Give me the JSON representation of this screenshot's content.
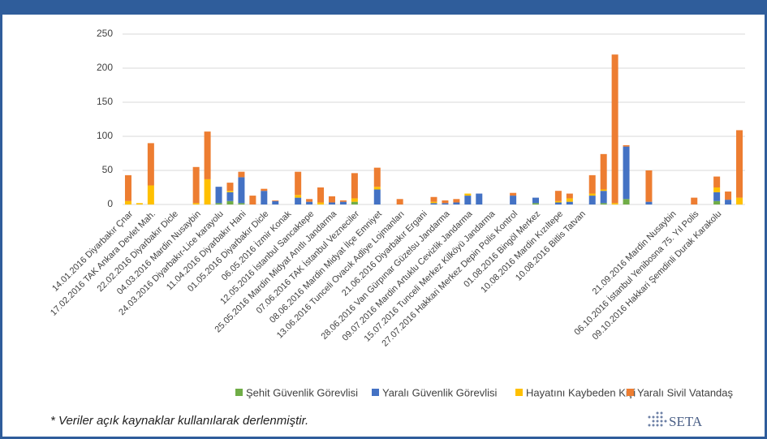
{
  "chart_data": {
    "type": "stacked_bar",
    "categories": [
      "14.01.2016 Diyarbakır Çnar",
      null,
      "17.02.2016 TAK Ankara Devlet Mah.",
      null,
      "22.02.2016 Diyarbakır Dicle",
      null,
      "04.03.2016 Mardin Nusaybin",
      null,
      "24.03.2016 Diyarbakır-Lice karayolu",
      null,
      "11.04.2016 Diyarbakır Hani",
      null,
      "01.05.2016 Diyarbakır Dicle",
      null,
      "06.05.2016 İzmir Konak",
      null,
      "12.05.2016 İstanbul Sancaktepe",
      null,
      "25.05.2016 Mardin Midyat Anıtlı Jandarma",
      null,
      "07.06.2016 TAK İstanbul Vezneciler",
      null,
      "08.06.2016 Mardin Midyat İlçe Emniyet",
      null,
      "13.06.2016 Tunceli Ovacık Adliye Lojmanları",
      null,
      "21.06.2016 Diyarbakır Ergani",
      null,
      "28.06.2016 Van Gürpınar Güzelsu Jandarma",
      null,
      "09.07.2016 Mardin Artuklu Cevizlik Jandarma",
      null,
      "15.07.2016 Tunceli Merkez Kilköyü Jandarma",
      null,
      "27.07.2016 Hakkari Merkez Depin Polis Kontrol",
      null,
      "01.08.2016 Bingöl Merkez",
      null,
      "10.08.2016 Mardin Kızıltepe",
      null,
      "10.08.2016 Bitlis Tatvan",
      null,
      null,
      null,
      null,
      null,
      null,
      null,
      "21.09.2016 Mardin Nusaybin",
      null,
      "06.10.2016 İstanbul Yenibosna 75. Yıl Polis",
      null,
      "09.10.2016 Hakkari Şemdinli Durak Karakolu",
      null,
      null
    ],
    "series": [
      {
        "name": "Şehit Güvenlik Görevlisi",
        "color": "#70ad47",
        "values": [
          0,
          0,
          0,
          0,
          0,
          0,
          0,
          0,
          2,
          5,
          2,
          0,
          0,
          0,
          0,
          0,
          0,
          0,
          0,
          0,
          4,
          0,
          0,
          0,
          0,
          0,
          0,
          0,
          0,
          0,
          0,
          0,
          0,
          0,
          0,
          0,
          2,
          0,
          0,
          0,
          0,
          0,
          2,
          0,
          8,
          0,
          0,
          0,
          0,
          0,
          0,
          0,
          5,
          0,
          0
        ]
      },
      {
        "name": "Yaralı Güvenlik Görevlisi",
        "color": "#4472c4",
        "values": [
          0,
          0,
          0,
          0,
          0,
          0,
          0,
          0,
          24,
          13,
          38,
          0,
          20,
          5,
          0,
          10,
          4,
          0,
          3,
          4,
          0,
          0,
          22,
          0,
          0,
          0,
          0,
          2,
          2,
          3,
          13,
          16,
          0,
          0,
          13,
          0,
          8,
          0,
          3,
          4,
          0,
          13,
          18,
          0,
          77,
          0,
          4,
          0,
          0,
          0,
          0,
          0,
          13,
          7,
          0
        ]
      },
      {
        "name": "Hayatını Kaybeden Kişi",
        "color": "#ffc000",
        "values": [
          5,
          2,
          28,
          0,
          0,
          0,
          2,
          37,
          0,
          2,
          0,
          0,
          0,
          0,
          0,
          4,
          0,
          3,
          0,
          0,
          5,
          0,
          4,
          0,
          0,
          0,
          0,
          2,
          0,
          0,
          3,
          0,
          0,
          0,
          0,
          0,
          0,
          0,
          2,
          5,
          0,
          3,
          2,
          2,
          0,
          0,
          0,
          0,
          0,
          0,
          0,
          0,
          7,
          0,
          10
        ]
      },
      {
        "name": "Yaralı Sivil Vatandaş",
        "color": "#ed7d31",
        "values": [
          38,
          0,
          62,
          0,
          0,
          0,
          53,
          70,
          0,
          12,
          8,
          13,
          3,
          1,
          0,
          34,
          4,
          22,
          9,
          2,
          37,
          0,
          28,
          0,
          8,
          0,
          0,
          7,
          4,
          5,
          0,
          0,
          0,
          0,
          4,
          0,
          0,
          0,
          15,
          7,
          0,
          27,
          52,
          218,
          2,
          0,
          46,
          0,
          0,
          0,
          10,
          0,
          16,
          12,
          99
        ]
      }
    ],
    "ylim": [
      0,
      250
    ],
    "yticks": [
      0,
      50,
      100,
      150,
      200,
      250
    ],
    "grid": true,
    "legend": "bottom",
    "footnote": "* Veriler açık kaynaklar kullanılarak derlenmiştir.",
    "logo": "SETA"
  }
}
